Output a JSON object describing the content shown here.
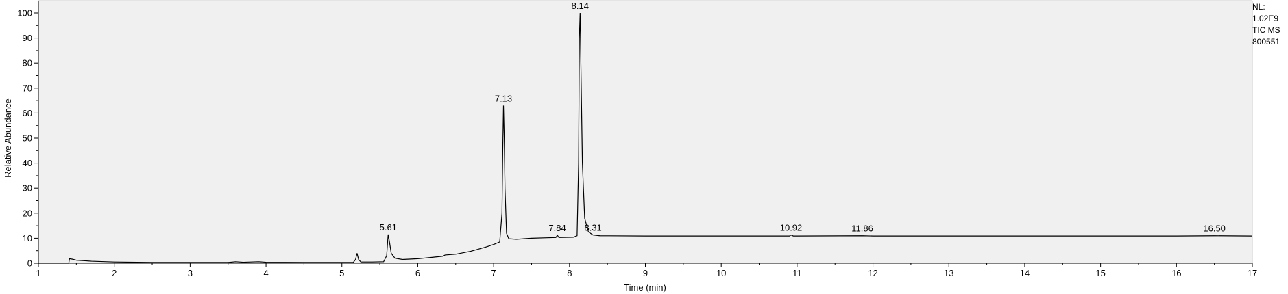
{
  "info": {
    "nl_label": "NL:",
    "nl_value": "1.02E9",
    "scan_type": "TIC  MS",
    "sample_id": "800551"
  },
  "chart_data": {
    "type": "line",
    "title": "",
    "xlabel": "Time (min)",
    "ylabel": "Relative Abundance",
    "xlim": [
      1,
      17
    ],
    "ylim": [
      0,
      100
    ],
    "x_ticks": [
      1,
      2,
      3,
      4,
      5,
      6,
      7,
      8,
      9,
      10,
      11,
      12,
      13,
      14,
      15,
      16,
      17
    ],
    "y_ticks": [
      0,
      10,
      20,
      30,
      40,
      50,
      60,
      70,
      80,
      90,
      100
    ],
    "grid": false,
    "series": [
      {
        "color": "#000000",
        "points": [
          [
            1.0,
            0.0
          ],
          [
            1.4,
            0.0
          ],
          [
            1.41,
            1.8
          ],
          [
            1.45,
            1.6
          ],
          [
            1.5,
            1.2
          ],
          [
            1.7,
            0.8
          ],
          [
            2.0,
            0.5
          ],
          [
            2.5,
            0.3
          ],
          [
            3.0,
            0.3
          ],
          [
            3.5,
            0.3
          ],
          [
            3.6,
            0.6
          ],
          [
            3.7,
            0.4
          ],
          [
            3.9,
            0.6
          ],
          [
            4.0,
            0.4
          ],
          [
            4.5,
            0.3
          ],
          [
            5.0,
            0.3
          ],
          [
            5.15,
            0.3
          ],
          [
            5.18,
            1.5
          ],
          [
            5.2,
            4.0
          ],
          [
            5.22,
            1.5
          ],
          [
            5.25,
            0.5
          ],
          [
            5.4,
            0.5
          ],
          [
            5.55,
            0.6
          ],
          [
            5.59,
            3.0
          ],
          [
            5.61,
            11.5
          ],
          [
            5.63,
            8.0
          ],
          [
            5.65,
            4.0
          ],
          [
            5.7,
            2.0
          ],
          [
            5.8,
            1.5
          ],
          [
            6.0,
            1.8
          ],
          [
            6.2,
            2.4
          ],
          [
            6.33,
            2.8
          ],
          [
            6.36,
            3.3
          ],
          [
            6.5,
            3.6
          ],
          [
            6.7,
            4.8
          ],
          [
            6.9,
            6.5
          ],
          [
            7.0,
            7.5
          ],
          [
            7.08,
            8.5
          ],
          [
            7.11,
            20.0
          ],
          [
            7.12,
            45.0
          ],
          [
            7.13,
            63.0
          ],
          [
            7.14,
            50.0
          ],
          [
            7.15,
            30.0
          ],
          [
            7.17,
            12.0
          ],
          [
            7.2,
            9.8
          ],
          [
            7.3,
            9.6
          ],
          [
            7.5,
            10.0
          ],
          [
            7.7,
            10.2
          ],
          [
            7.82,
            10.3
          ],
          [
            7.84,
            11.2
          ],
          [
            7.86,
            10.3
          ],
          [
            8.05,
            10.4
          ],
          [
            8.1,
            11.0
          ],
          [
            8.12,
            40.0
          ],
          [
            8.13,
            90.0
          ],
          [
            8.14,
            100.0
          ],
          [
            8.15,
            80.0
          ],
          [
            8.17,
            40.0
          ],
          [
            8.2,
            18.0
          ],
          [
            8.25,
            12.5
          ],
          [
            8.31,
            11.3
          ],
          [
            8.4,
            11.0
          ],
          [
            9.0,
            10.9
          ],
          [
            10.0,
            10.9
          ],
          [
            10.9,
            10.9
          ],
          [
            10.92,
            11.3
          ],
          [
            10.95,
            10.9
          ],
          [
            11.0,
            10.9
          ],
          [
            11.86,
            11.0
          ],
          [
            12.0,
            10.9
          ],
          [
            13.0,
            10.9
          ],
          [
            14.0,
            10.9
          ],
          [
            15.0,
            10.9
          ],
          [
            16.0,
            10.9
          ],
          [
            16.5,
            11.0
          ],
          [
            17.0,
            10.9
          ]
        ]
      }
    ],
    "peak_labels": [
      {
        "x": 5.61,
        "y": 11.5,
        "text": "5.61"
      },
      {
        "x": 7.13,
        "y": 63.0,
        "text": "7.13"
      },
      {
        "x": 7.84,
        "y": 11.2,
        "text": "7.84"
      },
      {
        "x": 8.14,
        "y": 100.0,
        "text": "8.14"
      },
      {
        "x": 8.31,
        "y": 11.3,
        "text": "8.31"
      },
      {
        "x": 10.92,
        "y": 11.3,
        "text": "10.92"
      },
      {
        "x": 11.86,
        "y": 11.0,
        "text": "11.86"
      },
      {
        "x": 16.5,
        "y": 11.0,
        "text": "16.50"
      }
    ]
  }
}
